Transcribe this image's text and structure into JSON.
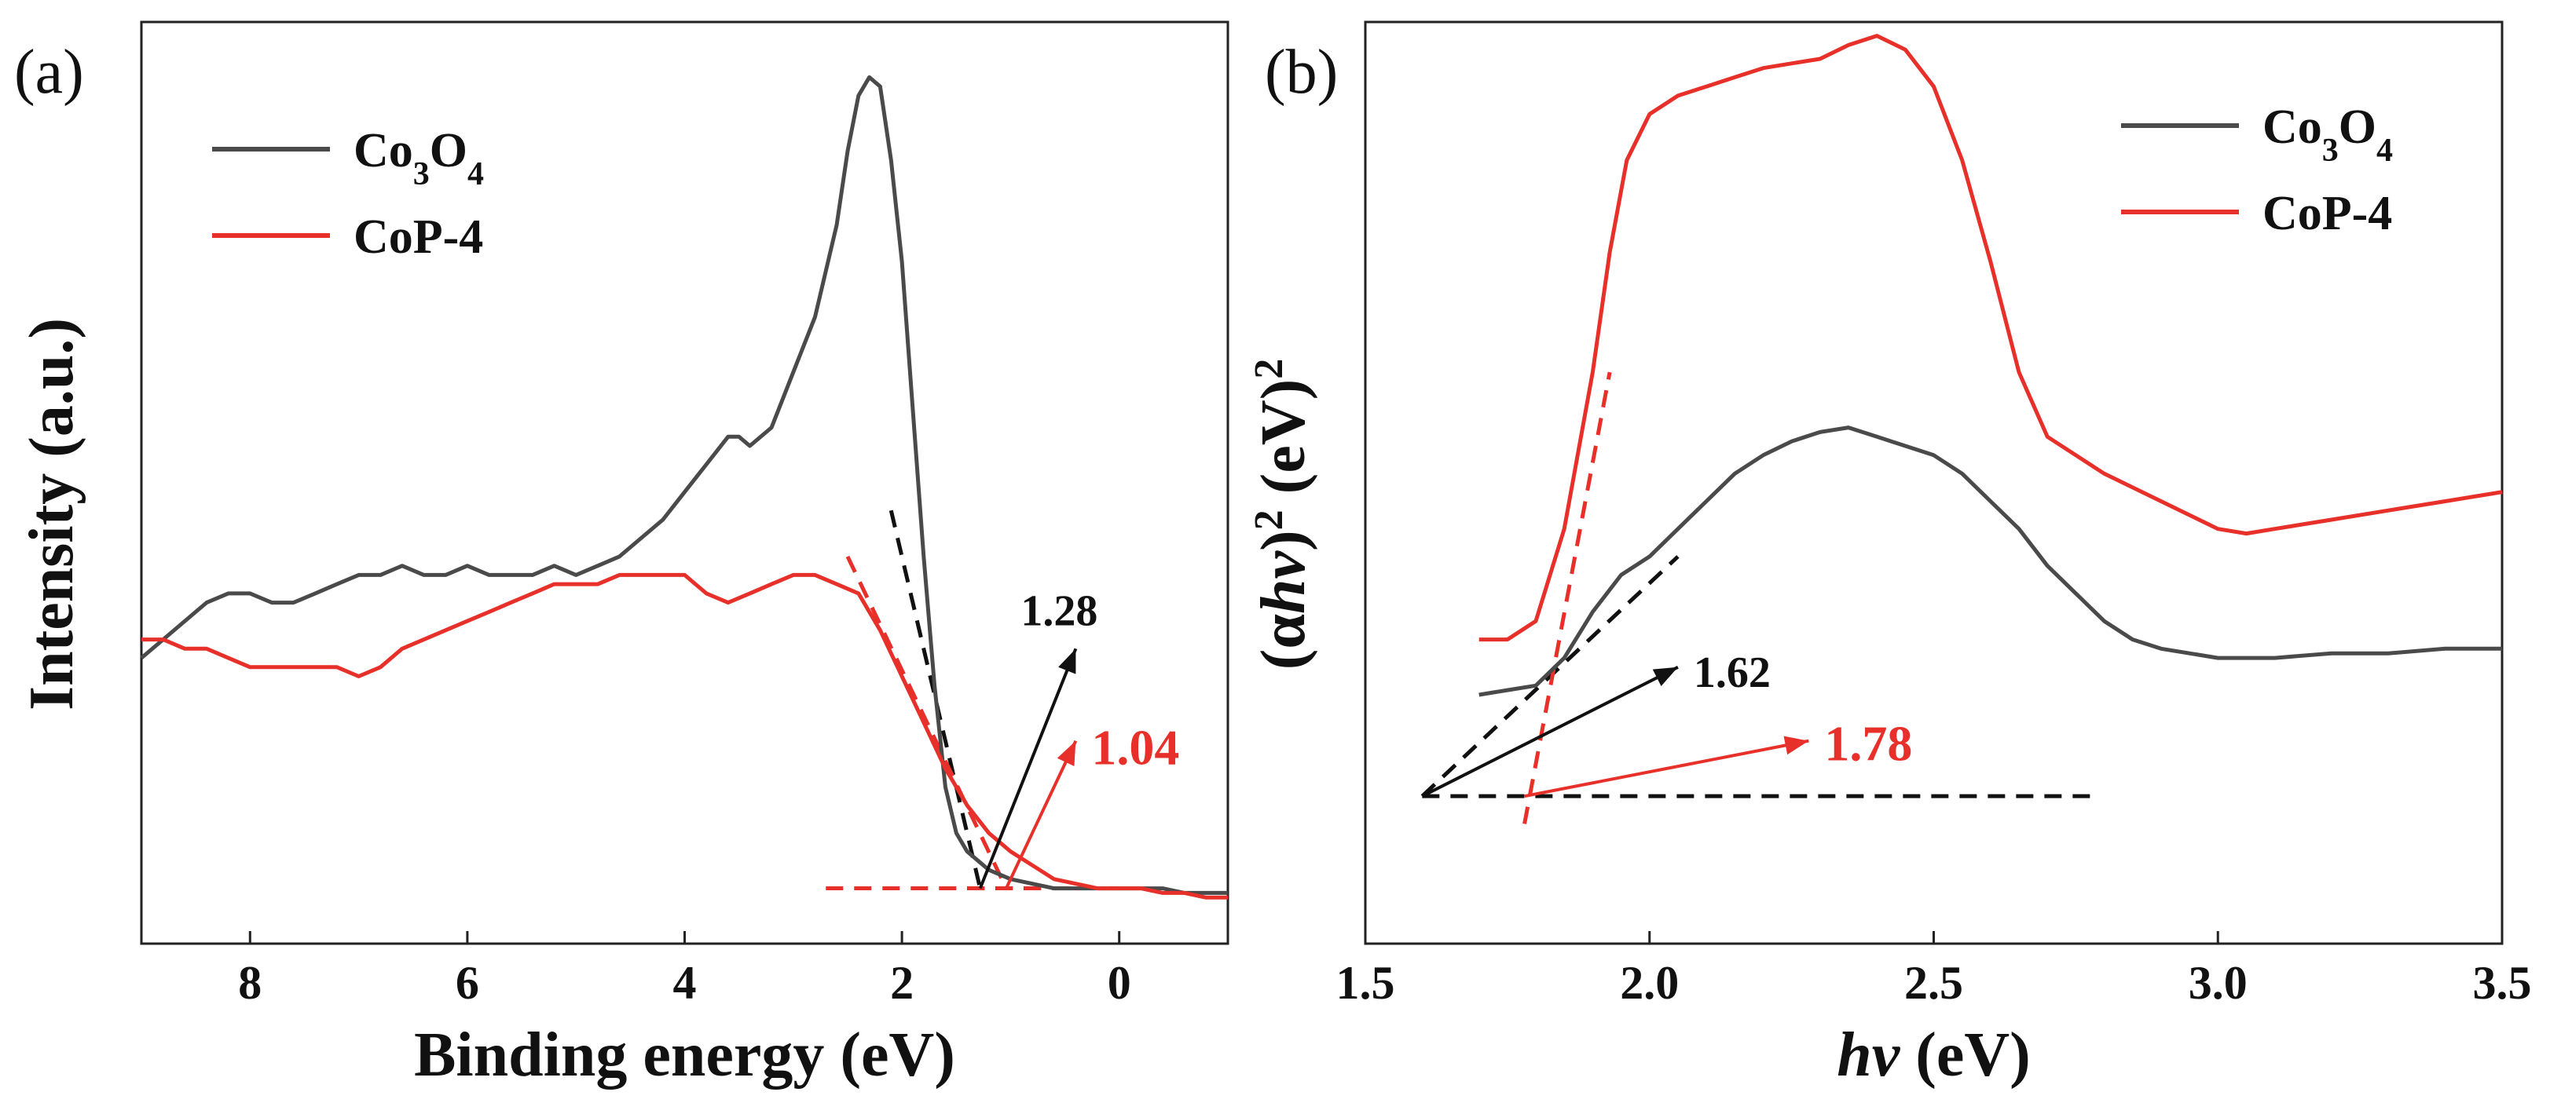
{
  "chart_data": [
    {
      "panel_label": "(a)",
      "type": "line",
      "xlabel": "Binding energy (eV)",
      "ylabel": "Intensity (a.u.)",
      "xlim": [
        9,
        -1
      ],
      "ylim": [
        0,
        1
      ],
      "xticks": [
        "8",
        "6",
        "4",
        "2",
        "0"
      ],
      "xtick_values": [
        8,
        6,
        4,
        2,
        0
      ],
      "legend": {
        "placement": "top-left",
        "entries": [
          {
            "name": "Co3O4",
            "main": "Co",
            "sub1": "3",
            "mid": "O",
            "sub2": "4",
            "color": "#4a4a4a"
          },
          {
            "name": "CoP-4",
            "main": "CoP-4",
            "color": "#e8302a"
          }
        ]
      },
      "series": [
        {
          "name": "Co3O4",
          "color": "#4a4a4a",
          "x": [
            9.0,
            8.8,
            8.6,
            8.4,
            8.2,
            8.0,
            7.8,
            7.6,
            7.4,
            7.2,
            7.0,
            6.8,
            6.6,
            6.4,
            6.2,
            6.0,
            5.8,
            5.6,
            5.4,
            5.2,
            5.0,
            4.8,
            4.6,
            4.4,
            4.2,
            4.0,
            3.8,
            3.6,
            3.5,
            3.4,
            3.2,
            3.0,
            2.8,
            2.6,
            2.5,
            2.4,
            2.3,
            2.2,
            2.1,
            2.0,
            1.9,
            1.8,
            1.7,
            1.6,
            1.5,
            1.4,
            1.3,
            1.2,
            1.0,
            0.8,
            0.6,
            0.4,
            0.2,
            0.0,
            -0.2,
            -0.4,
            -0.6,
            -0.8,
            -1.0
          ],
          "y": [
            0.31,
            0.33,
            0.35,
            0.37,
            0.38,
            0.38,
            0.37,
            0.37,
            0.38,
            0.39,
            0.4,
            0.4,
            0.41,
            0.4,
            0.4,
            0.41,
            0.4,
            0.4,
            0.4,
            0.41,
            0.4,
            0.41,
            0.42,
            0.44,
            0.46,
            0.49,
            0.52,
            0.55,
            0.55,
            0.54,
            0.56,
            0.62,
            0.68,
            0.78,
            0.86,
            0.92,
            0.94,
            0.93,
            0.85,
            0.74,
            0.58,
            0.42,
            0.28,
            0.17,
            0.12,
            0.1,
            0.09,
            0.08,
            0.07,
            0.065,
            0.06,
            0.06,
            0.06,
            0.06,
            0.06,
            0.06,
            0.055,
            0.055,
            0.055
          ]
        },
        {
          "name": "CoP-4",
          "color": "#e8302a",
          "x": [
            9.0,
            8.8,
            8.6,
            8.4,
            8.2,
            8.0,
            7.8,
            7.6,
            7.4,
            7.2,
            7.0,
            6.8,
            6.6,
            6.4,
            6.2,
            6.0,
            5.8,
            5.6,
            5.4,
            5.2,
            5.0,
            4.8,
            4.6,
            4.4,
            4.2,
            4.0,
            3.8,
            3.6,
            3.4,
            3.2,
            3.0,
            2.8,
            2.6,
            2.4,
            2.2,
            2.0,
            1.8,
            1.6,
            1.4,
            1.2,
            1.0,
            0.8,
            0.6,
            0.4,
            0.2,
            0.0,
            -0.2,
            -0.4,
            -0.6,
            -0.8,
            -1.0
          ],
          "y": [
            0.33,
            0.33,
            0.32,
            0.32,
            0.31,
            0.3,
            0.3,
            0.3,
            0.3,
            0.3,
            0.29,
            0.3,
            0.32,
            0.33,
            0.34,
            0.35,
            0.36,
            0.37,
            0.38,
            0.39,
            0.39,
            0.39,
            0.4,
            0.4,
            0.4,
            0.4,
            0.38,
            0.37,
            0.38,
            0.39,
            0.4,
            0.4,
            0.39,
            0.38,
            0.34,
            0.29,
            0.24,
            0.19,
            0.15,
            0.12,
            0.1,
            0.085,
            0.07,
            0.065,
            0.06,
            0.06,
            0.06,
            0.055,
            0.055,
            0.05,
            0.05
          ]
        }
      ],
      "annotations": [
        {
          "text": "1.28",
          "color": "#111111",
          "x": 1.28
        },
        {
          "text": "1.04",
          "color": "#e8302a",
          "x": 1.04
        }
      ],
      "tangent_lines": [
        {
          "color": "#111111",
          "x": [
            2.1,
            1.28
          ],
          "y": [
            0.47,
            0.06
          ]
        },
        {
          "color": "#e8302a",
          "x": [
            2.5,
            1.04
          ],
          "y": [
            0.42,
            0.06
          ]
        },
        {
          "color": "#111111",
          "x": [
            1.4,
            0.0
          ],
          "y": [
            0.06,
            0.06
          ]
        },
        {
          "color": "#e8302a",
          "x": [
            2.7,
            0.0
          ],
          "y": [
            0.06,
            0.06
          ]
        }
      ],
      "arrows": [
        {
          "color": "#111111",
          "from": [
            1.28,
            0.06
          ],
          "to": [
            0.4,
            0.32
          ]
        },
        {
          "color": "#e8302a",
          "from": [
            1.04,
            0.06
          ],
          "to": [
            0.4,
            0.22
          ]
        }
      ]
    },
    {
      "panel_label": "(b)",
      "type": "line",
      "xlabel": "hv (eV)",
      "ylabel": "(αhv)² (eV)²",
      "xlim": [
        1.5,
        3.5
      ],
      "ylim": [
        0,
        1
      ],
      "xticks": [
        "1.5",
        "2.0",
        "2.5",
        "3.0",
        "3.5"
      ],
      "xtick_values": [
        1.5,
        2.0,
        2.5,
        3.0,
        3.5
      ],
      "legend": {
        "placement": "top-right",
        "entries": [
          {
            "name": "Co3O4",
            "main": "Co",
            "sub1": "3",
            "mid": "O",
            "sub2": "4",
            "color": "#4a4a4a"
          },
          {
            "name": "CoP-4",
            "main": "CoP-4",
            "color": "#e8302a"
          }
        ]
      },
      "series": [
        {
          "name": "Co3O4",
          "color": "#4a4a4a",
          "x": [
            1.7,
            1.75,
            1.8,
            1.85,
            1.9,
            1.95,
            2.0,
            2.05,
            2.1,
            2.15,
            2.2,
            2.25,
            2.3,
            2.35,
            2.4,
            2.45,
            2.5,
            2.55,
            2.6,
            2.65,
            2.7,
            2.75,
            2.8,
            2.85,
            2.9,
            2.95,
            3.0,
            3.05,
            3.1,
            3.2,
            3.3,
            3.4,
            3.5
          ],
          "y": [
            0.27,
            0.275,
            0.28,
            0.31,
            0.36,
            0.4,
            0.42,
            0.45,
            0.48,
            0.51,
            0.53,
            0.545,
            0.555,
            0.56,
            0.55,
            0.54,
            0.53,
            0.51,
            0.48,
            0.45,
            0.41,
            0.38,
            0.35,
            0.33,
            0.32,
            0.315,
            0.31,
            0.31,
            0.31,
            0.315,
            0.315,
            0.32,
            0.32
          ]
        },
        {
          "name": "CoP-4",
          "color": "#e8302a",
          "x": [
            1.7,
            1.75,
            1.8,
            1.85,
            1.9,
            1.93,
            1.96,
            2.0,
            2.05,
            2.1,
            2.15,
            2.2,
            2.25,
            2.3,
            2.35,
            2.4,
            2.45,
            2.5,
            2.55,
            2.6,
            2.65,
            2.7,
            2.75,
            2.8,
            2.85,
            2.9,
            2.95,
            3.0,
            3.05,
            3.1,
            3.2,
            3.3,
            3.4,
            3.5
          ],
          "y": [
            0.33,
            0.33,
            0.35,
            0.45,
            0.62,
            0.75,
            0.85,
            0.9,
            0.92,
            0.93,
            0.94,
            0.95,
            0.955,
            0.96,
            0.975,
            0.985,
            0.97,
            0.93,
            0.85,
            0.74,
            0.62,
            0.55,
            0.53,
            0.51,
            0.495,
            0.48,
            0.465,
            0.45,
            0.445,
            0.45,
            0.46,
            0.47,
            0.48,
            0.49
          ]
        }
      ],
      "annotations": [
        {
          "text": "1.62",
          "color": "#111111",
          "x": 1.62
        },
        {
          "text": "1.78",
          "color": "#e8302a",
          "x": 1.78
        }
      ],
      "tangent_lines": [
        {
          "color": "#111111",
          "x": [
            1.6,
            2.05
          ],
          "y": [
            0.16,
            0.42
          ]
        },
        {
          "color": "#e8302a",
          "x": [
            1.78,
            1.93
          ],
          "y": [
            0.13,
            0.62
          ]
        },
        {
          "color": "#111111",
          "x": [
            1.6,
            2.78
          ],
          "y": [
            0.16,
            0.16
          ]
        }
      ],
      "arrows": [
        {
          "color": "#111111",
          "from": [
            1.6,
            0.16
          ],
          "to": [
            2.05,
            0.3
          ]
        },
        {
          "color": "#e8302a",
          "from": [
            1.78,
            0.16
          ],
          "to": [
            2.28,
            0.22
          ]
        }
      ]
    }
  ]
}
